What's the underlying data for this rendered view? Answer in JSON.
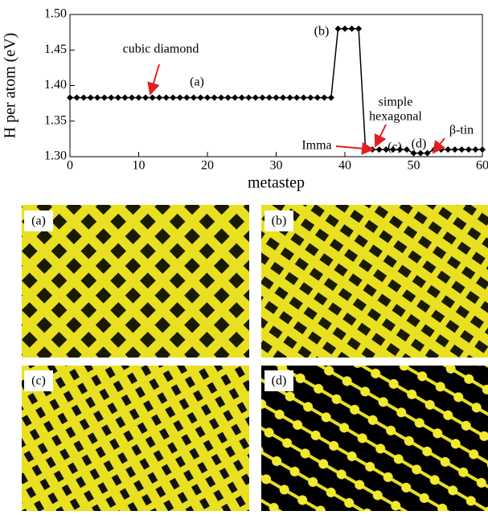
{
  "chart_data": {
    "type": "line",
    "xlabel": "metastep",
    "ylabel": "H per atom (eV)",
    "x": [
      0,
      1,
      2,
      3,
      4,
      5,
      6,
      7,
      8,
      9,
      10,
      11,
      12,
      13,
      14,
      15,
      16,
      17,
      18,
      19,
      20,
      21,
      22,
      23,
      24,
      25,
      26,
      27,
      28,
      29,
      30,
      31,
      32,
      33,
      34,
      35,
      36,
      37,
      38,
      39,
      40,
      41,
      42,
      43,
      44,
      45,
      46,
      47,
      48,
      49,
      50,
      51,
      52,
      53,
      54,
      55,
      56,
      57,
      58,
      59,
      60
    ],
    "values": [
      1.383,
      1.383,
      1.383,
      1.383,
      1.383,
      1.383,
      1.383,
      1.383,
      1.383,
      1.383,
      1.383,
      1.383,
      1.383,
      1.383,
      1.383,
      1.383,
      1.383,
      1.383,
      1.383,
      1.383,
      1.383,
      1.383,
      1.383,
      1.383,
      1.383,
      1.383,
      1.383,
      1.383,
      1.383,
      1.383,
      1.383,
      1.383,
      1.383,
      1.383,
      1.383,
      1.383,
      1.383,
      1.383,
      1.383,
      1.48,
      1.48,
      1.48,
      1.48,
      1.31,
      1.31,
      1.31,
      1.31,
      1.31,
      1.31,
      1.31,
      1.305,
      1.305,
      1.305,
      1.31,
      1.31,
      1.31,
      1.31,
      1.31,
      1.31,
      1.31,
      1.31
    ],
    "color": "#000000",
    "xlim": [
      0,
      60
    ],
    "xticks": [
      0,
      10,
      20,
      30,
      40,
      50,
      60
    ],
    "ylim": [
      1.3,
      1.5
    ],
    "yticks": [
      {
        "value": 1.3,
        "label": "1.30"
      },
      1.35,
      {
        "value": 1.4,
        "label": "1.40"
      },
      1.45,
      {
        "value": 1.5,
        "label": "1.50"
      }
    ],
    "annotations": [
      "cubic diamond",
      "(a)",
      "(b)",
      "simple",
      "hexagonal",
      "β-tin",
      "Imma",
      "(c)",
      "(d)"
    ]
  },
  "panels": [
    "(a)",
    "(b)",
    "(c)",
    "(d)"
  ]
}
